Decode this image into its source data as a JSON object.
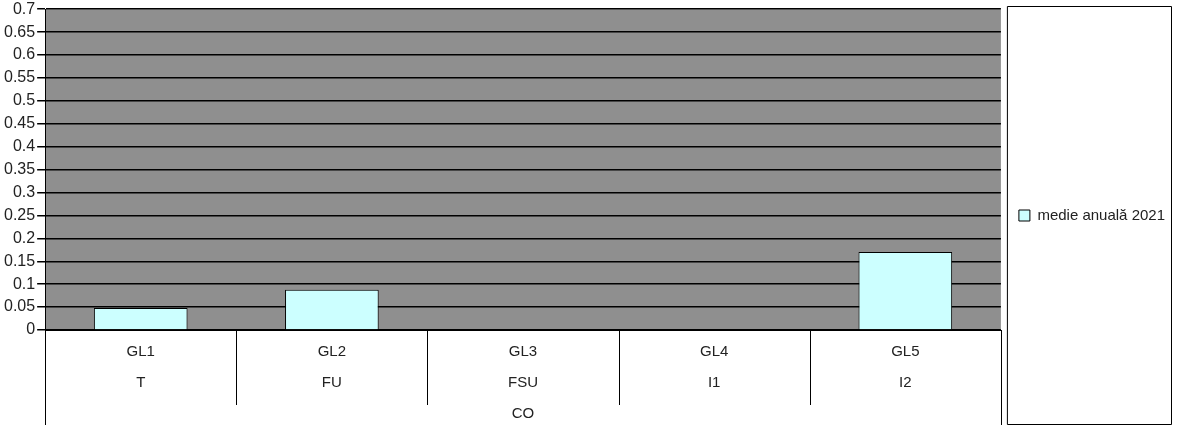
{
  "chart_data": {
    "type": "bar",
    "categories": [
      "GL1\nT",
      "GL2\nFU",
      "GL3\nFSU",
      "GL4\nI1",
      "GL5\nI2"
    ],
    "xlabel": "CO",
    "series": [
      {
        "name": "medie anuală 2021",
        "color": "#ccffff",
        "values": [
          0.048,
          0.088,
          null,
          null,
          0.17
        ]
      }
    ],
    "ylim": [
      0,
      0.7
    ],
    "yticks": [
      0,
      0.05,
      0.1,
      0.15,
      0.2,
      0.25,
      0.3,
      0.35,
      0.4,
      0.45,
      0.5,
      0.55,
      0.6,
      0.65,
      0.7
    ],
    "grid": "y",
    "legend": "right"
  }
}
